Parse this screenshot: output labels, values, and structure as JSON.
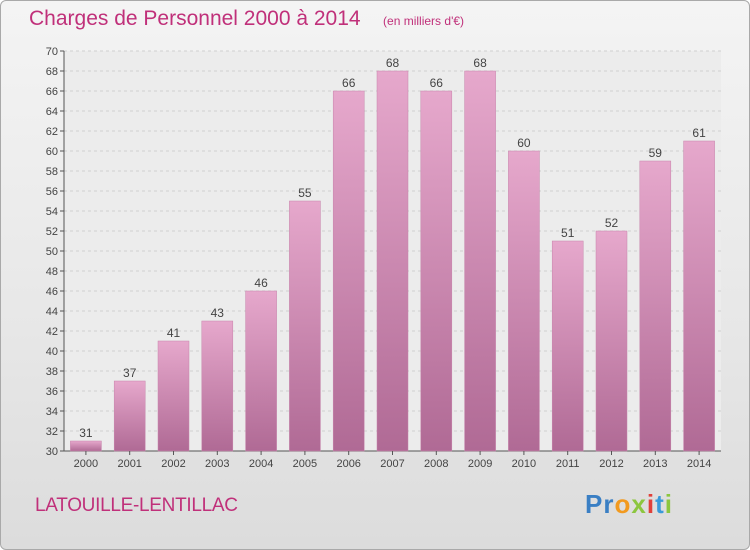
{
  "chart_data": {
    "type": "bar",
    "title": "Charges de Personnel 2000 à 2014",
    "subtitle": "(en milliers d'€)",
    "categories": [
      "2000",
      "2001",
      "2002",
      "2003",
      "2004",
      "2005",
      "2006",
      "2007",
      "2008",
      "2009",
      "2010",
      "2011",
      "2012",
      "2013",
      "2014"
    ],
    "values": [
      31,
      37,
      41,
      43,
      46,
      55,
      66,
      68,
      66,
      68,
      60,
      51,
      52,
      59,
      61
    ],
    "ylim": [
      30,
      70
    ],
    "ytick_step": 2,
    "grid": true,
    "bar_color": "#d98cb6",
    "title_color": "#c0307a"
  },
  "footer": {
    "commune": "LATOUILLE-LENTILLAC",
    "logo_letters": [
      {
        "ch": "P",
        "color": "#3a7fc4"
      },
      {
        "ch": "r",
        "color": "#3a7fc4"
      },
      {
        "ch": "o",
        "color": "#f29a1f"
      },
      {
        "ch": "x",
        "color": "#8cc63f"
      },
      {
        "ch": "i",
        "color": "#e0403a"
      },
      {
        "ch": "t",
        "color": "#3a9ad9"
      },
      {
        "ch": "i",
        "color": "#8cc63f"
      }
    ]
  }
}
